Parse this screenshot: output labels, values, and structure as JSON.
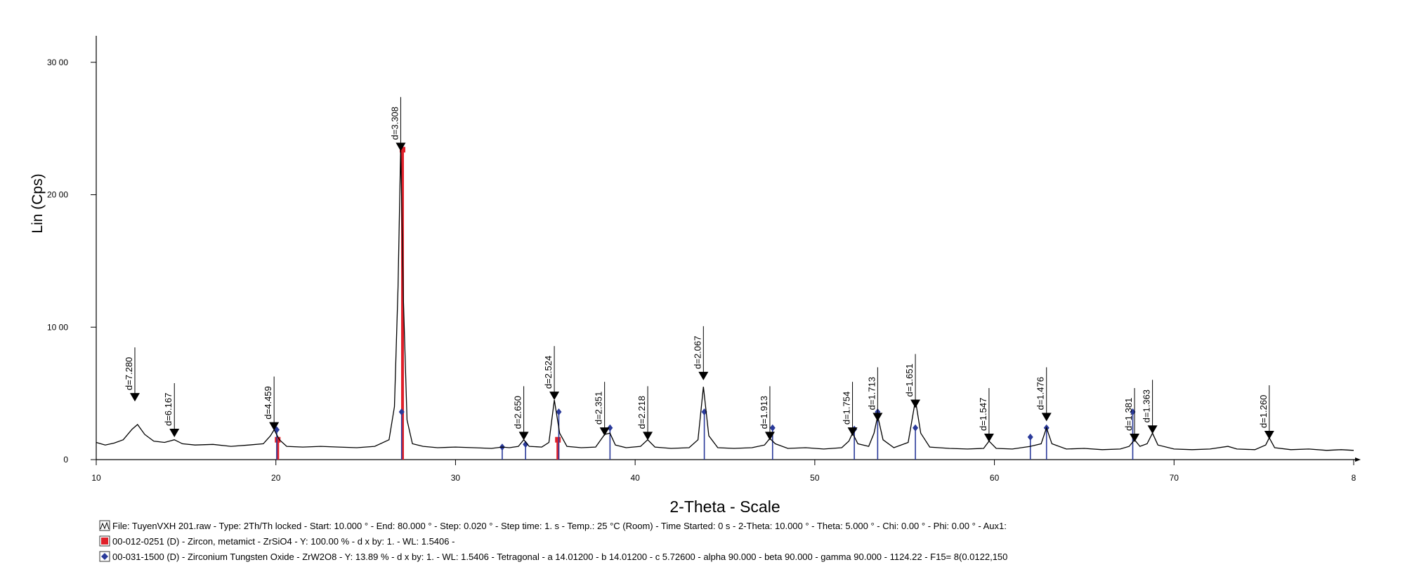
{
  "chart_data": {
    "type": "line",
    "xlabel": "2-Theta - Scale",
    "ylabel": "Lin (Cps)",
    "xlim": [
      10,
      80
    ],
    "xticks": [
      10,
      20,
      30,
      40,
      50,
      60,
      70,
      {
        "value": 80,
        "label": "8"
      }
    ],
    "ylim": [
      0,
      3200
    ],
    "yticks": [
      0,
      {
        "value": 1000,
        "label": "10 00"
      },
      {
        "value": 2000,
        "label": "20 00"
      },
      {
        "value": 3000,
        "label": "30 00"
      }
    ],
    "series": [
      {
        "name": "File: TuyenVXH 201.raw - Type: 2Th/Th locked - Start: 10.000 ° - End: 80.000 ° - Step: 0.020 ° - Step time: 1. s - Temp.: 25 °C (Room) - Time Started: 0 s - 2-Theta: 10.000 ° - Theta: 5.000 ° - Chi: 0.00 ° - Phi: 0.00 ° - Aux1:",
        "color": "#000000",
        "x": [
          10,
          10.5,
          11,
          11.5,
          12,
          12.3,
          12.7,
          13.2,
          13.8,
          14.35,
          14.8,
          15.5,
          16.5,
          17.5,
          18.5,
          19.3,
          19.7,
          19.9,
          20.2,
          20.6,
          21.5,
          22.5,
          23.5,
          24.5,
          25.5,
          26.3,
          26.6,
          26.8,
          26.95,
          27.1,
          27.3,
          27.6,
          28.2,
          29,
          30,
          31,
          32,
          32.6,
          33,
          33.5,
          33.8,
          34.1,
          34.8,
          35.2,
          35.5,
          35.8,
          36.2,
          37,
          37.8,
          38.3,
          38.6,
          38.9,
          39.5,
          40.3,
          40.7,
          41.1,
          42,
          43,
          43.5,
          43.8,
          44.1,
          44.6,
          45.5,
          46.5,
          47.2,
          47.5,
          47.8,
          48.5,
          49.5,
          50.5,
          51.5,
          51.9,
          52.1,
          52.4,
          53,
          53.3,
          53.5,
          53.8,
          54.4,
          55.2,
          55.6,
          55.9,
          56.4,
          57.5,
          58.5,
          59.4,
          59.7,
          60.1,
          61,
          62,
          62.6,
          62.9,
          63.2,
          64,
          65,
          66,
          67,
          67.5,
          67.8,
          68.1,
          68.5,
          68.8,
          69.1,
          70,
          71,
          72,
          73,
          73.5,
          74.5,
          75.1,
          75.3,
          75.6,
          76.5,
          77.5,
          78.5,
          79.3,
          80
        ],
        "values": [
          130,
          110,
          125,
          150,
          230,
          265,
          190,
          140,
          130,
          150,
          120,
          110,
          115,
          100,
          110,
          120,
          180,
          225,
          150,
          100,
          95,
          100,
          95,
          90,
          100,
          150,
          400,
          1300,
          2360,
          1200,
          300,
          120,
          100,
          90,
          95,
          90,
          85,
          95,
          90,
          100,
          150,
          100,
          95,
          130,
          450,
          200,
          100,
          90,
          95,
          190,
          200,
          110,
          90,
          100,
          150,
          95,
          85,
          90,
          150,
          550,
          180,
          90,
          85,
          90,
          110,
          160,
          120,
          85,
          90,
          80,
          90,
          140,
          200,
          120,
          100,
          200,
          330,
          150,
          90,
          130,
          450,
          200,
          95,
          85,
          80,
          85,
          140,
          85,
          80,
          100,
          120,
          240,
          120,
          80,
          85,
          75,
          80,
          100,
          150,
          100,
          120,
          200,
          110,
          80,
          75,
          80,
          100,
          80,
          75,
          110,
          165,
          90,
          75,
          80,
          70,
          75,
          70
        ]
      }
    ],
    "peaks": [
      {
        "label": "d=7.280",
        "x": 12.15,
        "y": 450
      },
      {
        "label": "d=6.167",
        "x": 14.35,
        "y": 180
      },
      {
        "label": "d=4.459",
        "x": 19.9,
        "y": 230
      },
      {
        "label": "d=3.308",
        "x": 26.95,
        "y": 2340
      },
      {
        "label": "d=2.650",
        "x": 33.8,
        "y": 157
      },
      {
        "label": "d=2.524",
        "x": 35.5,
        "y": 460
      },
      {
        "label": "d=2.351",
        "x": 38.3,
        "y": 190
      },
      {
        "label": "d=2.218",
        "x": 40.7,
        "y": 157
      },
      {
        "label": "d=2.067",
        "x": 43.8,
        "y": 610
      },
      {
        "label": "d=1.913",
        "x": 47.5,
        "y": 157
      },
      {
        "label": "d=1.754",
        "x": 52.1,
        "y": 190
      },
      {
        "label": "d=1.713",
        "x": 53.5,
        "y": 300
      },
      {
        "label": "d=1.651",
        "x": 55.6,
        "y": 400
      },
      {
        "label": "d=1.547",
        "x": 59.7,
        "y": 143
      },
      {
        "label": "d=1.476",
        "x": 62.9,
        "y": 300
      },
      {
        "label": "d=1.381",
        "x": 67.8,
        "y": 143
      },
      {
        "label": "d=1.363",
        "x": 68.8,
        "y": 205
      },
      {
        "label": "d=1.260",
        "x": 75.3,
        "y": 164
      }
    ],
    "references": [
      {
        "name": "00-012-0251 (D) - Zircon, metamict - ZrSiO4 - Y: 100.00 % - d x by: 1. - WL: 1.5406 -",
        "color": "#e0202a",
        "marker": "square",
        "x": [
          20.1,
          27.05,
          35.7
        ],
        "values": [
          150,
          2340,
          150
        ]
      },
      {
        "name": "00-031-1500 (D) - Zirconium Tungsten Oxide - ZrW2O8 - Y: 13.89 % - d x by: 1. - WL: 1.5406 - Tetragonal - a 14.01200 - b 14.01200 - c 5.72600 - alpha 90.000 - beta 90.000 - gamma 90.000 - 1124.22 - F15= 8(0.0122,150",
        "color": "#2a3a9a",
        "marker": "diamond",
        "x": [
          20.05,
          27.0,
          32.6,
          33.9,
          35.75,
          38.6,
          43.85,
          47.65,
          52.2,
          53.5,
          55.6,
          62.0,
          62.9,
          67.7
        ],
        "values": [
          225,
          360,
          95,
          115,
          360,
          240,
          360,
          240,
          230,
          360,
          240,
          170,
          240,
          360
        ]
      }
    ]
  }
}
